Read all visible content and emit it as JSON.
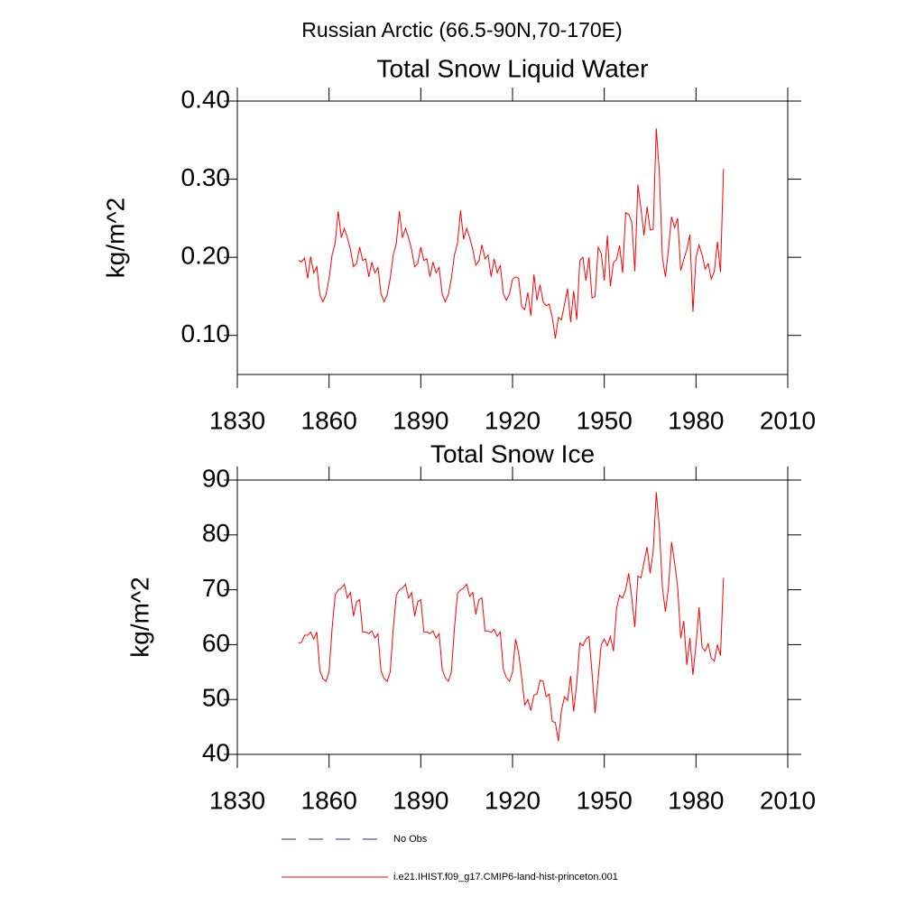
{
  "title": "Russian Arctic (66.5-90N,70-170E)",
  "legend": {
    "entries": [
      {
        "label": "No Obs",
        "color": "#2a2a7a",
        "dashed": true
      },
      {
        "label": "i.e21.IHIST.f09_g17.CMIP6-land-hist-princeton.001",
        "color": "#ff0000",
        "dashed": false
      }
    ]
  },
  "chart_data": [
    {
      "type": "line",
      "title": "Total Snow Liquid Water",
      "y_label": "kg/m^2",
      "xlim": [
        1830,
        2010
      ],
      "xticks": [
        1830,
        1860,
        1890,
        1920,
        1950,
        1980,
        2010
      ],
      "ylim": [
        0.05,
        0.4
      ],
      "yticks": [
        {
          "value": 0.1,
          "label": "0.10"
        },
        {
          "value": 0.2,
          "label": "0.20"
        },
        {
          "value": 0.3,
          "label": "0.30"
        },
        {
          "value": 0.4,
          "label": "0.40"
        }
      ],
      "x": [
        1850,
        1851,
        1852,
        1853,
        1854,
        1855,
        1856,
        1857,
        1858,
        1859,
        1860,
        1861,
        1862,
        1863,
        1864,
        1865,
        1866,
        1867,
        1868,
        1869,
        1870,
        1871,
        1872,
        1873,
        1874,
        1875,
        1876,
        1877,
        1878,
        1879,
        1880,
        1881,
        1882,
        1883,
        1884,
        1885,
        1886,
        1887,
        1888,
        1889,
        1890,
        1891,
        1892,
        1893,
        1894,
        1895,
        1896,
        1897,
        1898,
        1899,
        1900,
        1901,
        1902,
        1903,
        1904,
        1905,
        1906,
        1907,
        1908,
        1909,
        1910,
        1911,
        1912,
        1913,
        1914,
        1915,
        1916,
        1917,
        1918,
        1919,
        1920,
        1921,
        1922,
        1923,
        1924,
        1925,
        1926,
        1927,
        1928,
        1929,
        1930,
        1931,
        1932,
        1933,
        1934,
        1935,
        1936,
        1937,
        1938,
        1939,
        1940,
        1941,
        1942,
        1943,
        1944,
        1945,
        1946,
        1947,
        1948,
        1949,
        1950,
        1951,
        1952,
        1953,
        1954,
        1955,
        1956,
        1957,
        1958,
        1959,
        1960,
        1961,
        1962,
        1963,
        1964,
        1965,
        1966,
        1967,
        1968,
        1969,
        1970,
        1971,
        1972,
        1973,
        1974,
        1975,
        1976,
        1977,
        1978,
        1979,
        1980,
        1981,
        1982,
        1983,
        1984,
        1985,
        1986,
        1987,
        1988,
        1989
      ],
      "series": [
        {
          "name": "i.e21.IHIST.f09_g17.CMIP6-land-hist-princeton.001",
          "color": "#ff0000",
          "values": [
            0.196,
            0.194,
            0.199,
            0.173,
            0.201,
            0.18,
            0.188,
            0.152,
            0.143,
            0.152,
            0.173,
            0.203,
            0.218,
            0.259,
            0.225,
            0.237,
            0.225,
            0.21,
            0.188,
            0.192,
            0.213,
            0.196,
            0.198,
            0.175,
            0.194,
            0.18,
            0.187,
            0.153,
            0.143,
            0.152,
            0.173,
            0.203,
            0.218,
            0.259,
            0.225,
            0.237,
            0.225,
            0.21,
            0.188,
            0.192,
            0.213,
            0.196,
            0.198,
            0.175,
            0.194,
            0.18,
            0.187,
            0.153,
            0.143,
            0.152,
            0.173,
            0.203,
            0.218,
            0.26,
            0.223,
            0.237,
            0.225,
            0.21,
            0.19,
            0.195,
            0.216,
            0.198,
            0.203,
            0.175,
            0.198,
            0.18,
            0.19,
            0.153,
            0.145,
            0.153,
            0.172,
            0.175,
            0.173,
            0.137,
            0.133,
            0.155,
            0.125,
            0.178,
            0.145,
            0.165,
            0.143,
            0.138,
            0.14,
            0.123,
            0.096,
            0.123,
            0.12,
            0.14,
            0.16,
            0.117,
            0.157,
            0.12,
            0.196,
            0.2,
            0.17,
            0.2,
            0.148,
            0.15,
            0.213,
            0.205,
            0.17,
            0.228,
            0.163,
            0.193,
            0.197,
            0.215,
            0.18,
            0.257,
            0.255,
            0.245,
            0.182,
            0.293,
            0.262,
            0.228,
            0.265,
            0.235,
            0.236,
            0.365,
            0.31,
            0.2,
            0.175,
            0.21,
            0.252,
            0.238,
            0.25,
            0.183,
            0.197,
            0.21,
            0.229,
            0.13,
            0.2,
            0.216,
            0.203,
            0.185,
            0.192,
            0.172,
            0.182,
            0.22,
            0.181,
            0.313
          ]
        }
      ]
    },
    {
      "type": "line",
      "title": "Total Snow Ice",
      "y_label": "kg/m^2",
      "xlim": [
        1830,
        2010
      ],
      "xticks": [
        1830,
        1860,
        1890,
        1920,
        1950,
        1980,
        2010
      ],
      "ylim": [
        40,
        90
      ],
      "yticks": [
        40,
        50,
        60,
        70,
        80,
        90
      ],
      "x": [
        1850,
        1851,
        1852,
        1853,
        1854,
        1855,
        1856,
        1857,
        1858,
        1859,
        1860,
        1861,
        1862,
        1863,
        1864,
        1865,
        1866,
        1867,
        1868,
        1869,
        1870,
        1871,
        1872,
        1873,
        1874,
        1875,
        1876,
        1877,
        1878,
        1879,
        1880,
        1881,
        1882,
        1883,
        1884,
        1885,
        1886,
        1887,
        1888,
        1889,
        1890,
        1891,
        1892,
        1893,
        1894,
        1895,
        1896,
        1897,
        1898,
        1899,
        1900,
        1901,
        1902,
        1903,
        1904,
        1905,
        1906,
        1907,
        1908,
        1909,
        1910,
        1911,
        1912,
        1913,
        1914,
        1915,
        1916,
        1917,
        1918,
        1919,
        1920,
        1921,
        1922,
        1923,
        1924,
        1925,
        1926,
        1927,
        1928,
        1929,
        1930,
        1931,
        1932,
        1933,
        1934,
        1935,
        1936,
        1937,
        1938,
        1939,
        1940,
        1941,
        1942,
        1943,
        1944,
        1945,
        1946,
        1947,
        1948,
        1949,
        1950,
        1951,
        1952,
        1953,
        1954,
        1955,
        1956,
        1957,
        1958,
        1959,
        1960,
        1961,
        1962,
        1963,
        1964,
        1965,
        1966,
        1967,
        1968,
        1969,
        1970,
        1971,
        1972,
        1973,
        1974,
        1975,
        1976,
        1977,
        1978,
        1979,
        1980,
        1981,
        1982,
        1983,
        1984,
        1985,
        1986,
        1987,
        1988,
        1989
      ],
      "series": [
        {
          "name": "i.e21.IHIST.f09_g17.CMIP6-land-hist-princeton.001",
          "color": "#ff0000",
          "values": [
            60.3,
            60.4,
            61.7,
            61.7,
            62.3,
            61.0,
            62.3,
            55.2,
            53.8,
            53.3,
            55.0,
            63.0,
            69.0,
            70.0,
            70.3,
            71.0,
            68.5,
            69.5,
            65.2,
            67.8,
            68.2,
            62.3,
            62.3,
            62.0,
            62.5,
            61.2,
            62.0,
            55.2,
            53.8,
            53.3,
            55.0,
            63.0,
            69.0,
            70.0,
            70.3,
            71.0,
            68.5,
            69.5,
            65.2,
            67.8,
            68.2,
            62.3,
            62.3,
            62.0,
            62.5,
            61.2,
            62.0,
            55.5,
            54.0,
            53.3,
            55.0,
            63.0,
            69.3,
            70.0,
            70.3,
            71.0,
            68.8,
            69.5,
            65.5,
            68.2,
            68.5,
            62.5,
            62.5,
            62.2,
            62.8,
            61.5,
            62.3,
            55.5,
            54.0,
            53.3,
            55.0,
            61.0,
            58.5,
            54.0,
            49.0,
            50.0,
            48.0,
            50.8,
            51.0,
            53.5,
            53.3,
            50.5,
            51.0,
            46.0,
            45.8,
            42.4,
            48.0,
            50.5,
            49.8,
            54.3,
            47.8,
            53.0,
            60.3,
            59.8,
            61.0,
            61.5,
            54.8,
            47.5,
            53.8,
            60.0,
            61.0,
            59.8,
            61.5,
            58.8,
            66.5,
            69.0,
            68.5,
            70.0,
            73.0,
            68.5,
            63.2,
            72.5,
            72.2,
            75.0,
            77.8,
            73.0,
            77.0,
            87.8,
            81.5,
            70.5,
            66.0,
            70.5,
            78.7,
            75.0,
            70.5,
            61.2,
            64.3,
            56.3,
            61.2,
            54.5,
            60.0,
            66.8,
            59.5,
            58.8,
            60.2,
            57.5,
            57.0,
            60.0,
            58.0,
            72.2
          ]
        }
      ]
    }
  ]
}
